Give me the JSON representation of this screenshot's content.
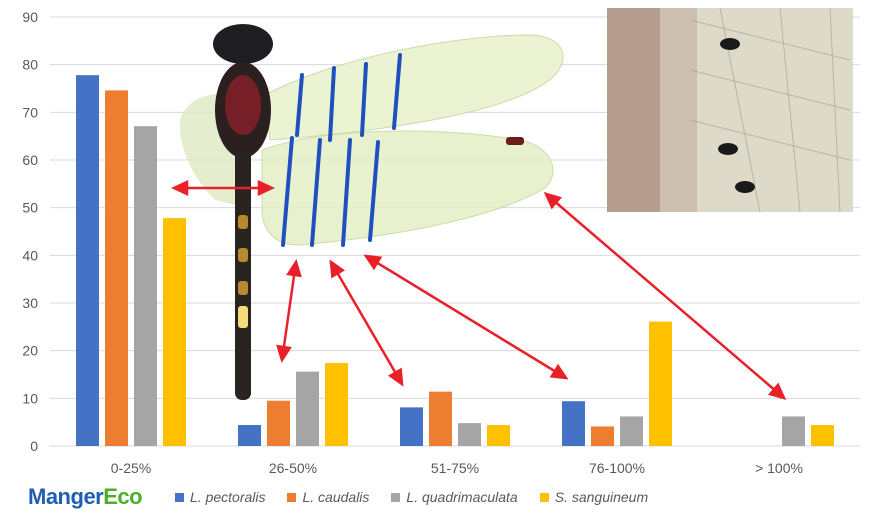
{
  "brand": {
    "part1": "Manger",
    "part2": "Eco",
    "color1": "#1f5fb0",
    "color2": "#4caf2a"
  },
  "chart_data": {
    "type": "bar",
    "categories": [
      "0-25%",
      "26-50%",
      "51-75%",
      "76-100%",
      "> 100%"
    ],
    "series": [
      {
        "name": "L. pectoralis",
        "color": "#4472c4",
        "values": [
          77.8,
          4.4,
          8.1,
          9.4,
          0
        ]
      },
      {
        "name": "L. caudalis",
        "color": "#ed7d31",
        "values": [
          74.6,
          9.5,
          11.4,
          4.1,
          0
        ]
      },
      {
        "name": "L. quadrimaculata",
        "color": "#a5a5a5",
        "values": [
          67.1,
          15.6,
          4.8,
          6.2,
          6.2
        ]
      },
      {
        "name": "S. sanguineum",
        "color": "#ffc000",
        "values": [
          47.8,
          17.4,
          4.4,
          26.1,
          4.4
        ]
      }
    ],
    "ylim": [
      0,
      90
    ],
    "yticks": [
      0,
      10,
      20,
      30,
      40,
      50,
      60,
      70,
      80,
      90
    ],
    "grid": true,
    "legend_position": "bottom"
  },
  "overlays": {
    "dragonfly_photo": "dragonfly-wing-banding-illustration",
    "inset_photo": "mites-on-wing-closeup",
    "arrow_color": "#e8202a"
  }
}
